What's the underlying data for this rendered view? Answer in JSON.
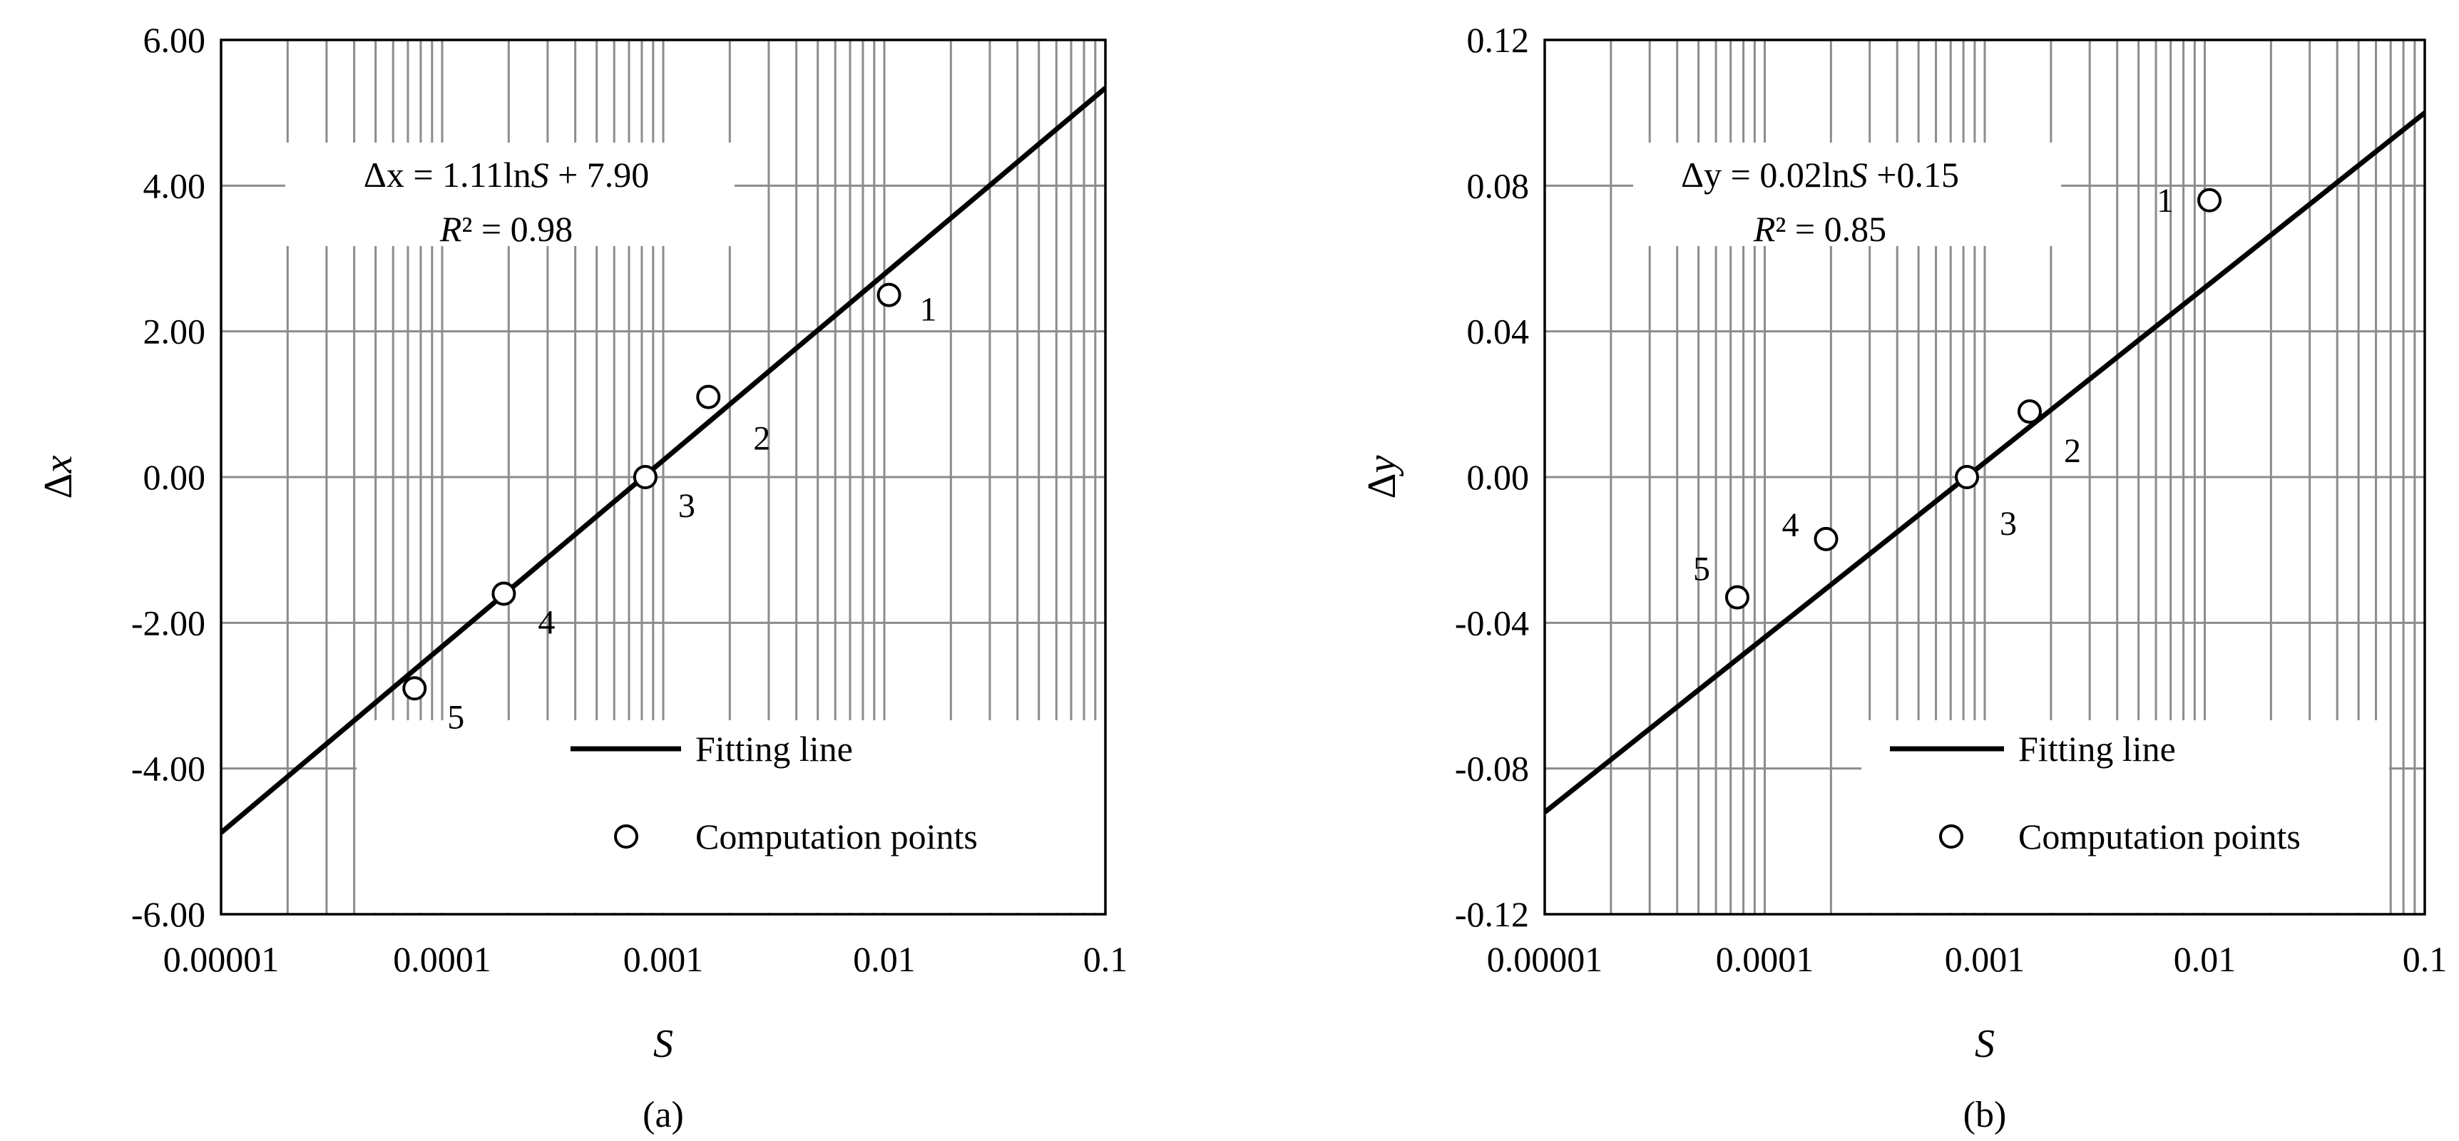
{
  "chart_data": [
    {
      "type": "scatter",
      "panel_label": "(a)",
      "x_scale": "log",
      "xlim": [
        1e-05,
        0.1
      ],
      "ylim": [
        -6,
        6
      ],
      "xlabel": "S",
      "ylabel": "Δx",
      "x_ticks": [
        "0.00001",
        "0.0001",
        "0.001",
        "0.01",
        "0.1"
      ],
      "y_ticks": [
        "6.00",
        "4.00",
        "2.00",
        "0.00",
        "-2.00",
        "-4.00",
        "-6.00"
      ],
      "grid": true,
      "equation": {
        "prefix": "Δx = 1.11ln",
        "var": "S",
        "suffix": " + 7.90"
      },
      "r2": {
        "label": "R",
        "sup": "²",
        "value": " = 0.98"
      },
      "series": [
        {
          "name": "Fitting line",
          "kind": "line",
          "x": [
            1e-05,
            0.1
          ],
          "y": [
            -4.88,
            5.34
          ]
        },
        {
          "name": "Computation points",
          "kind": "scatter",
          "x": [
            0.0105,
            0.0016,
            0.00083,
            0.00019,
            7.5e-05
          ],
          "y": [
            2.5,
            1.1,
            0.0,
            -1.6,
            -2.9
          ],
          "labels": [
            "1",
            "2",
            "3",
            "4",
            "5"
          ]
        }
      ],
      "legend": {
        "position": "bottom-right",
        "entries": [
          "Fitting line",
          "Computation points"
        ]
      }
    },
    {
      "type": "scatter",
      "panel_label": "(b)",
      "x_scale": "log",
      "xlim": [
        1e-05,
        0.1
      ],
      "ylim": [
        -0.12,
        0.12
      ],
      "xlabel": "S",
      "ylabel": "Δy",
      "x_ticks": [
        "0.00001",
        "0.0001",
        "0.001",
        "0.01",
        "0.1"
      ],
      "y_ticks": [
        "0.12",
        "0.08",
        "0.04",
        "0.00",
        "-0.04",
        "-0.08",
        "-0.12"
      ],
      "grid": true,
      "equation": {
        "prefix": "Δy = 0.02ln",
        "var": "S",
        "suffix": " +0.15"
      },
      "r2": {
        "label": "R",
        "sup": "²",
        "value": " = 0.85"
      },
      "series": [
        {
          "name": "Fitting line",
          "kind": "line",
          "x": [
            1e-05,
            0.1
          ],
          "y": [
            -0.092,
            0.1
          ]
        },
        {
          "name": "Computation points",
          "kind": "scatter",
          "x": [
            0.0105,
            0.0016,
            0.00083,
            0.00019,
            7.5e-05
          ],
          "y": [
            0.076,
            0.018,
            0.0,
            -0.017,
            -0.033
          ],
          "labels": [
            "1",
            "2",
            "3",
            "4",
            "5"
          ]
        }
      ],
      "legend": {
        "position": "bottom-right",
        "entries": [
          "Fitting line",
          "Computation points"
        ]
      }
    }
  ]
}
